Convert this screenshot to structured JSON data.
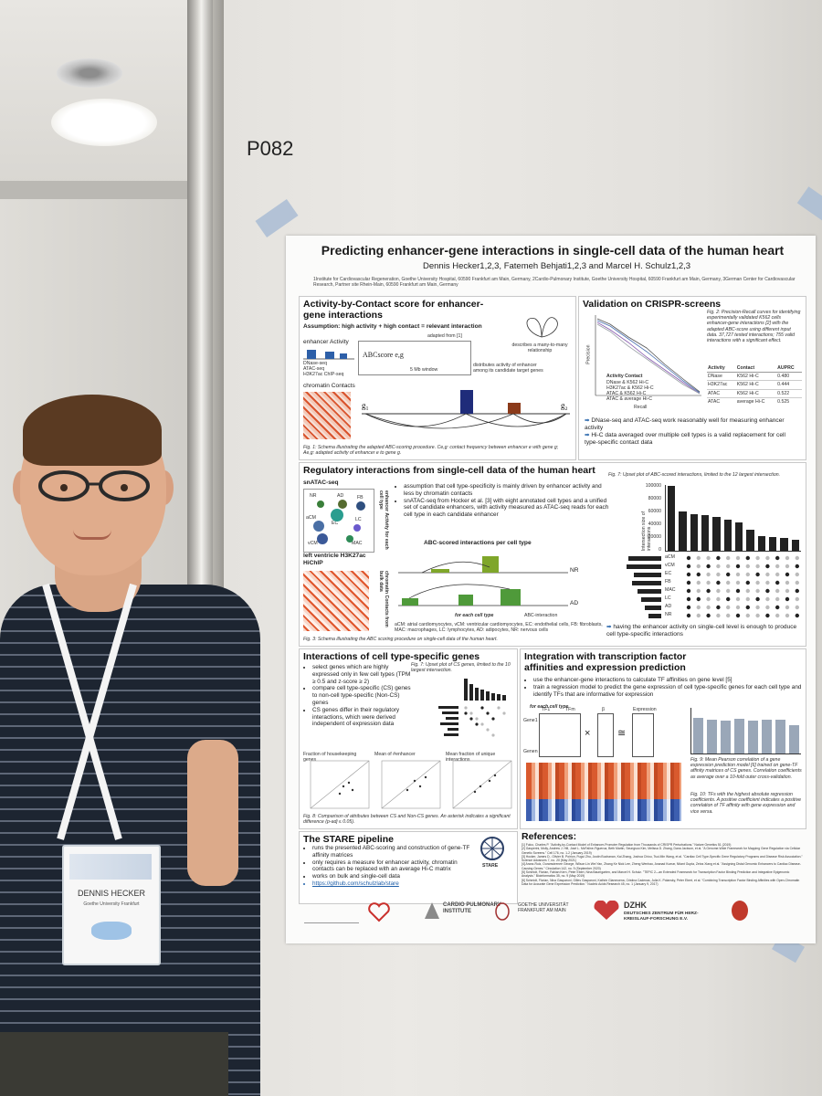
{
  "scene": {
    "poster_code": "P082",
    "badge": {
      "name": "DENNIS HECKER",
      "affiliation": "Goethe University Frankfurt"
    }
  },
  "poster": {
    "title": "Predicting enhancer-gene interactions in single-cell data of the human heart",
    "authors": "Dennis Hecker1,2,3, Fatemeh Behjati1,2,3 and Marcel H. Schulz1,2,3",
    "affiliations": "1Institute for Cardiovascular Regeneration, Goethe University Hospital, 60590 Frankfurt am Main, Germany, 2Cardio-Pulmonary Institute, Goethe University Hospital, 60590 Frankfurt am Main, Germany, 3German Center for Cardiovascular Research, Partner site Rhein-Main, 60590 Frankfurt am Main, Germany",
    "abc": {
      "heading": "Activity-by-Contact score for enhancer-gene interactions",
      "assumption": "Assumption: high activity + high contact = relevant interaction",
      "enhancer_activity": "enhancer Activity",
      "tracks": [
        "DNase-seq",
        "ATAC-seq",
        "H3K27ac ChIP-seq"
      ],
      "chromatin_contacts": "chromatin Contacts",
      "formula": "ABCscore e,g",
      "window_note": "5 Mb window",
      "adapted": "adapted from [1]",
      "many_to_many": "describes a many-to-many relationship",
      "distributes": "distributes activity of enhancer among its candidate target genes",
      "caption": "Fig. 1: Schema illustrating the adapted ABC-scoring procedure. Ce,g: contact frequency between enhancer e with gene g; Ae,g: adapted activity of enhancer e to gene g."
    },
    "validation": {
      "heading": "Validation on CRISPR-screens",
      "caption": "Fig. 2: Precision-Recall curves for identifying experimentally validated K562 cells enhancer-gene interactions [2] with the adapted ABC-score using different input data. 37,727 tested interactions; 755 valid interactions with a significant effect.",
      "table_headers": [
        "Activity",
        "Contact",
        "AUPRC"
      ],
      "table_rows": [
        [
          "DNase",
          "K562 Hi-C",
          "0.480"
        ],
        [
          "H3K27ac",
          "K562 Hi-C",
          "0.444"
        ],
        [
          "ATAC",
          "K562 Hi-C",
          "0.522"
        ],
        [
          "ATAC",
          "average Hi-C",
          "0.525"
        ]
      ],
      "legend_title": "Activity  Contact",
      "legend": [
        "DNase & K562 Hi-C",
        "H3K27ac & K562 Hi-C",
        "ATAC & K562 Hi-C",
        "ATAC & average Hi-C"
      ],
      "xlabel": "Recall",
      "ylabel": "Precision",
      "bullets": [
        "DNase-seq and ATAC-seq work reasonably well for measuring enhancer activity",
        "Hi-C data averaged over multiple cell types is a valid replacement for cell type-specific contact data"
      ]
    },
    "regulatory": {
      "heading": "Regulatory interactions from single-cell data of the human heart",
      "snatac": "snATAC-seq",
      "cell_labels": [
        "NR",
        "AD",
        "FB",
        "aCM",
        "EC",
        "LC",
        "vCM",
        "MAC"
      ],
      "side1": "enhancer Activity for each cell type",
      "lv": "left ventricle H3K27ac HiChIP",
      "side2": "chromatin Contacts from bulk data",
      "bullets": [
        "assumption that cell type-specificity is mainly driven by enhancer activity and less by chromatin contacts",
        "snATAC-seq from Hocker et al. [3] with eight annotated cell types and a unified set of candidate enhancers, with activity measured as ATAC-seq reads for each cell type in each candidate enhancer"
      ],
      "abc_per_cell": "ABC-scored interactions per cell type",
      "nr": "NR",
      "ad": "AD",
      "for_each": "for each cell type",
      "abc_interaction": "ABC-interaction",
      "abbrev": "aCM: atrial cardiomyocytes, vCM: ventricular cardiomyocytes, EC: endothelial cells, FB: fibroblasts, MAC: macrophages, LC: lymphocytes, AD: adipocytes, NR: nervous cells",
      "caption": "Fig. 3: Schema illustrating the ABC scoring procedure on single-cell data of the human heart.",
      "upset_caption": "Fig. 7: Upset plot of ABC-scored interactions, limited to the 12 largest intersection.",
      "upset_ylabel": "Intersection size of interactions",
      "upset_yticks": [
        "100000",
        "80000",
        "60000",
        "40000",
        "20000",
        "0"
      ],
      "upset_bars": [
        98000,
        60000,
        55000,
        54000,
        52000,
        47000,
        43000,
        32000,
        22000,
        21000,
        20000,
        17000
      ],
      "upset_rows": [
        "aCM",
        "vCM",
        "EC",
        "FB",
        "MAC",
        "LC",
        "AD",
        "NR"
      ],
      "upset_conclusion": "having the enhancer activity on single-cell level is enough to produce cell type-specific interactions"
    },
    "cs_genes": {
      "heading": "Interactions of cell type-specific genes",
      "bullets": [
        "select genes which are highly expressed only in few cell types (TPM ≥ 0.5 and z-score ≥ 2)",
        "compare cell type-specific (CS) genes to non-cell type-specific (Non-CS) genes",
        "CS genes differ in their regulatory interactions, which were derived independent of expression data"
      ],
      "upset_caption": "Fig. 7: Upset plot of CS genes, limited to the 10 largest intersection.",
      "scatter_titles": [
        "Fraction of housekeeping genes",
        "Mean of #enhancer",
        "Mean fraction of unique interactions"
      ],
      "caption": "Fig. 8: Comparison of attributes between CS and Non-CS genes. An asterisk indicates a significant difference (p-adj ≤ 0.05)."
    },
    "integration": {
      "heading": "Integration with transcription factor affinities and expression prediction",
      "bullets": [
        "use the enhancer-gene interactions to calculate TF affinities on gene level [5]",
        "train a regression model to predict the gene expression of cell type-specific genes for each cell type and identify TFs that are informative for expression"
      ],
      "for_each": "for each cell type",
      "matrix_labels": [
        "Gene1",
        "Genen",
        "TF1",
        "TFm",
        "β",
        "Expression"
      ],
      "fig9": "Fig. 9: Mean Pearson correlation of a gene expression prediction model [6] trained on gene-TF affinity matrices of CS genes. Correlation coefficients as average over a 10-fold outer cross-validation.",
      "fig10": "Fig. 10: TFs with the highest absolute regression coefficients. A positive coefficient indicates a positive correlation of TF affinity with gene expression and vice versa.",
      "bar_values": [
        0.62,
        0.6,
        0.58,
        0.61,
        0.58,
        0.6,
        0.59,
        0.5
      ],
      "bar_labels": [
        "aCM",
        "vCM",
        "EC",
        "FB",
        "MAC",
        "LC",
        "AD",
        "NR"
      ]
    },
    "stare": {
      "heading": "The STARE pipeline",
      "logo": "STARE",
      "bullets": [
        "runs the presented ABC-scoring and construction of gene-TF affinity matrices",
        "only requires a measure for enhancer activity, chromatin contacts can be replaced with an average Hi-C matrix",
        "works on bulk and single-cell data",
        "https://github.com/schulzlab/stare"
      ]
    },
    "references": {
      "heading": "References:",
      "items": [
        "[1] Fulco, Charles P. \"Activity-by-Contact Model of Enhancer-Promoter Regulation from Thousands of CRISPR Perturbations.\" Nature Genetics 51 (2019)",
        "[2] Gasperini, Molly, Andrew J. Hill, José L. McFaline-Figueroa, Beth Martin, Seungsoo Kim, Melissa D. Zhang, Dana Jackson, et al. \"A Genome-Wide Framework for Mapping Gene Regulation via Cellular Genetic Screens.\" Cell 176, no. 1-2 (January 2019)",
        "[3] Hocker, James D., Olivier B. Poirion, Fugui Zhu, Justin Buchanan, Kai Zhang, Joshua Chiou, Tsui-Min Wang, et al. \"Cardiac Cell Type-Specific Gene Regulatory Programs and Disease Risk Association.\" Science Advances 7, no. 20 (May 2021)",
        "[4] Aranz-Ruiz, Ouramutrenee George, Wilson Lin Wei Yan, Zhang Ke Nick Lee, Zheng Wenhao, Ananad Kumar, Nitant Gupta, Zetos Xiang et al. \"Assigning Distal Genomic Enhancers to Cardiac Disease-Causing Genes.\" Circulation 142, no. 9 (September 2020)",
        "[5] Schmidt, Florian, Fabian Kern, Peter Ebert, Nina Baumgarten, and Marcel H. Schulz. \"TEPIC 2—an Extended Framework for Transcription Factor Binding Prediction and Integrative Epigenomic Analysis.\" Bioinformatics 35, no. 9 (May 2019)",
        "[6] Schmidt, Florian, Nina Gasparoni, Gilles Gasparoni, Kathrin Gianmoena, Cristina Cadenas, Julia K. Polansky, Peter Ebert, et al. \"Combining Transcription Factor Binding Affinities with Open-Chromatin Data for Accurate Gene Expression Prediction.\" Nucleic Acids Research 45, no. 1 (January 9, 2017)"
      ]
    },
    "footer": {
      "cardio": "CARDIO PULMONARY INSTITUTE",
      "goethe": "GOETHE UNIVERSITÄT FRANKFURT AM MAIN",
      "dzhk": "DZHK",
      "dzhk_full": "DEUTSCHES ZENTRUM FÜR HERZ-KREISLAUF-FORSCHUNG E.V."
    }
  },
  "colors": {
    "heading_blue": "#1f5fa8",
    "activity_navy": "#1f2c7a",
    "activity_brown": "#8b3a1a",
    "nr_green": "#7fa62a",
    "ad_green": "#4f9a3a"
  }
}
